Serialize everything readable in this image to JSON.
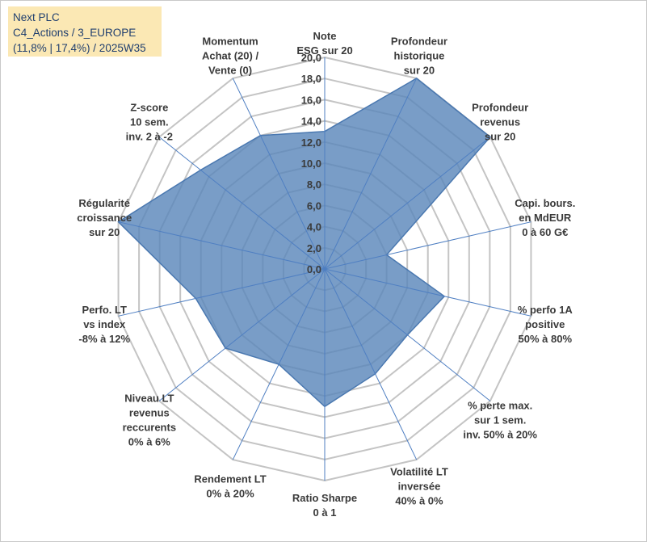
{
  "info": {
    "line1": "Next PLC",
    "line2": "C4_Actions / 3_EUROPE",
    "line3": "(11,8% | 17,4%) / 2025W35"
  },
  "chart_data": {
    "type": "radar",
    "title": "",
    "rmin": 0,
    "rmax": 20,
    "tick_step": 2,
    "tick_labels": [
      "0,0",
      "2,0",
      "4,0",
      "6,0",
      "8,0",
      "10,0",
      "12,0",
      "14,0",
      "16,0",
      "18,0",
      "20,0"
    ],
    "grid": true,
    "colors": {
      "fill": "#5b87bb",
      "line": "#4a78b0",
      "grid": "#c4c4c4",
      "axis": "#4f7fc2"
    },
    "axes": [
      {
        "label": [
          "Note",
          "ESG sur 20"
        ],
        "value": 13.0
      },
      {
        "label": [
          "Profondeur",
          "historique",
          "sur 20"
        ],
        "value": 20.0
      },
      {
        "label": [
          "Profondeur",
          "revenus",
          "sur 20"
        ],
        "value": 20.0
      },
      {
        "label": [
          "Capi. bours.",
          "en MdEUR",
          "0 à 60 G€"
        ],
        "value": 6.0
      },
      {
        "label": [
          "% perfo 1A",
          "positive",
          "50% à 80%"
        ],
        "value": 11.6
      },
      {
        "label": [
          "% perte max.",
          "sur 1 sem.",
          "inv. 50% à 20%"
        ],
        "value": 10.0
      },
      {
        "label": [
          "Volatilité LT",
          "inversée",
          "40% à 0%"
        ],
        "value": 11.0
      },
      {
        "label": [
          "Ratio Sharpe",
          "0 à 1"
        ],
        "value": 13.0
      },
      {
        "label": [
          "Rendement LT",
          "0% à 20%"
        ],
        "value": 10.0
      },
      {
        "label": [
          "Niveau LT",
          "revenus",
          "reccurents",
          "0% à 6%"
        ],
        "value": 12.0
      },
      {
        "label": [
          "Perfo. LT",
          "vs index",
          "-8% à 12%"
        ],
        "value": 12.5
      },
      {
        "label": [
          "Régularité",
          "croissance",
          "sur 20"
        ],
        "value": 20.0
      },
      {
        "label": [
          "Z-score",
          "10 sem.",
          "inv. 2 à -2"
        ],
        "value": 15.0
      },
      {
        "label": [
          "Momentum",
          "Achat (20) /",
          "Vente (0)"
        ],
        "value": 14.0
      }
    ]
  }
}
